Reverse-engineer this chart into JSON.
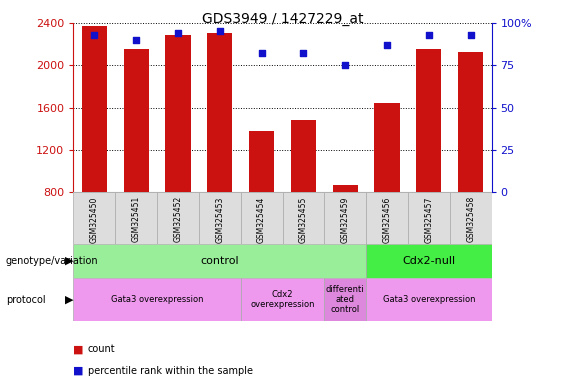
{
  "title": "GDS3949 / 1427229_at",
  "samples": [
    "GSM325450",
    "GSM325451",
    "GSM325452",
    "GSM325453",
    "GSM325454",
    "GSM325455",
    "GSM325459",
    "GSM325456",
    "GSM325457",
    "GSM325458"
  ],
  "counts": [
    2370,
    2150,
    2290,
    2310,
    1380,
    1480,
    870,
    1640,
    2150,
    2130
  ],
  "percentiles": [
    93,
    90,
    94,
    95,
    82,
    82,
    75,
    87,
    93,
    93
  ],
  "ylim_left": [
    800,
    2400
  ],
  "ylim_right": [
    0,
    100
  ],
  "yticks_left": [
    800,
    1200,
    1600,
    2000,
    2400
  ],
  "yticks_right": [
    0,
    25,
    50,
    75,
    100
  ],
  "bar_color": "#cc1111",
  "dot_color": "#1111cc",
  "background_color": "#ffffff",
  "genotype_groups": [
    {
      "label": "control",
      "start": 0,
      "end": 7,
      "color": "#99ee99"
    },
    {
      "label": "Cdx2-null",
      "start": 7,
      "end": 10,
      "color": "#44ee44"
    }
  ],
  "protocol_groups": [
    {
      "label": "Gata3 overexpression",
      "start": 0,
      "end": 4,
      "color": "#ee99ee"
    },
    {
      "label": "Cdx2\noverexpression",
      "start": 4,
      "end": 6,
      "color": "#ee99ee"
    },
    {
      "label": "differenti\nated\ncontrol",
      "start": 6,
      "end": 7,
      "color": "#dd88dd"
    },
    {
      "label": "Gata3 overexpression",
      "start": 7,
      "end": 10,
      "color": "#ee99ee"
    }
  ],
  "left_label_color": "#cc1111",
  "right_label_color": "#1111cc",
  "grid_color": "#000000"
}
